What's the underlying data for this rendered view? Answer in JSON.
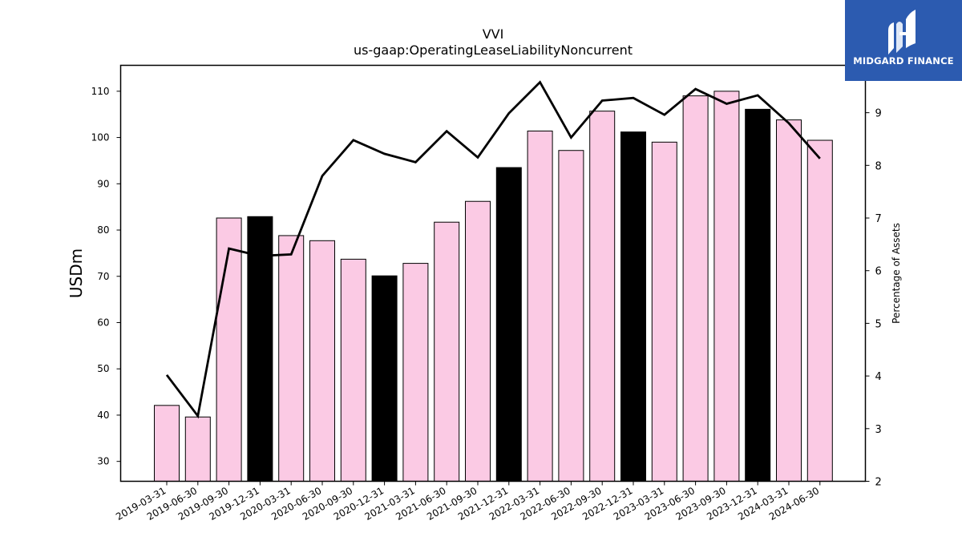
{
  "chart_data": {
    "type": "bar",
    "title": "VVI",
    "subtitle": "us-gaap:OperatingLeaseLiabilityNoncurrent",
    "ylabel": "USDm",
    "y2label": "Percentage of Assets",
    "ylim": [
      25.7,
      115.6
    ],
    "y2lim": [
      2,
      9.9
    ],
    "yticks": [
      30,
      40,
      50,
      60,
      70,
      80,
      90,
      100,
      110
    ],
    "y2ticks": [
      2,
      3,
      4,
      5,
      6,
      7,
      8,
      9
    ],
    "categories": [
      "2019-03-31",
      "2019-06-30",
      "2019-09-30",
      "2019-12-31",
      "2020-03-31",
      "2020-06-30",
      "2020-09-30",
      "2020-12-31",
      "2021-03-31",
      "2021-06-30",
      "2021-09-30",
      "2021-12-31",
      "2022-03-31",
      "2022-06-30",
      "2022-09-30",
      "2022-12-31",
      "2023-03-31",
      "2023-06-30",
      "2023-09-30",
      "2023-12-31",
      "2024-03-31",
      "2024-06-30"
    ],
    "series": [
      {
        "values": [
          42.1,
          39.6,
          82.6,
          82.9,
          78.8,
          77.7,
          73.7,
          70.1,
          72.8,
          81.7,
          86.2,
          93.5,
          101.4,
          97.2,
          105.7,
          101.2,
          99.0,
          109.0,
          110.0,
          106.1,
          103.8,
          99.4
        ],
        "highlight": [
          false,
          false,
          false,
          true,
          false,
          false,
          false,
          true,
          false,
          false,
          false,
          true,
          false,
          false,
          false,
          true,
          false,
          false,
          false,
          true,
          false,
          false
        ]
      },
      {
        "values": [
          4.02,
          3.24,
          6.42,
          6.28,
          6.31,
          7.8,
          8.48,
          8.22,
          8.06,
          8.65,
          8.15,
          8.99,
          9.58,
          8.53,
          9.23,
          9.28,
          8.96,
          9.45,
          9.17,
          9.33,
          8.8,
          8.13
        ]
      }
    ],
    "colors": {
      "bar": "#fbcae4",
      "bar_highlight": "#000000",
      "line": "#000000"
    },
    "grid": false
  },
  "logo": {
    "text": "MIDGARD FINANCE",
    "icon": "midgard-logo-icon",
    "bg": "#2c5bb0"
  }
}
